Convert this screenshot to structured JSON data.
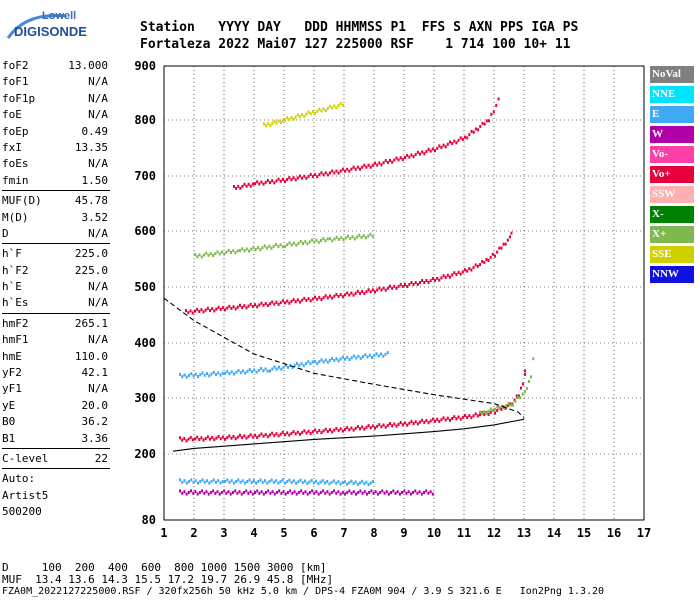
{
  "logo": {
    "line1": "Lowell",
    "line2": "DIGISONDE"
  },
  "header": {
    "line1": "Station   YYYY DAY   DDD HHMMSS P1  FFS S AXN PPS IGA PS",
    "line2": "Fortaleza 2022 Mai07 127 225000 RSF    1 714 100 10+ 11"
  },
  "params": {
    "group1": [
      {
        "k": "foF2",
        "v": "13.000"
      },
      {
        "k": "foF1",
        "v": "N/A"
      },
      {
        "k": "foF1p",
        "v": "N/A"
      },
      {
        "k": "foE",
        "v": "N/A"
      },
      {
        "k": "foEp",
        "v": "0.49"
      },
      {
        "k": "fxI",
        "v": "13.35"
      },
      {
        "k": "foEs",
        "v": "N/A"
      },
      {
        "k": "fmin",
        "v": "1.50"
      }
    ],
    "group2": [
      {
        "k": "MUF(D)",
        "v": "45.78"
      },
      {
        "k": "M(D)",
        "v": "3.52"
      },
      {
        "k": "D",
        "v": "N/A"
      }
    ],
    "group3": [
      {
        "k": "h`F",
        "v": "225.0"
      },
      {
        "k": "h`F2",
        "v": "225.0"
      },
      {
        "k": "h`E",
        "v": "N/A"
      },
      {
        "k": "h`Es",
        "v": "N/A"
      }
    ],
    "group4": [
      {
        "k": "hmF2",
        "v": "265.1"
      },
      {
        "k": "hmF1",
        "v": "N/A"
      },
      {
        "k": "hmE",
        "v": "110.0"
      },
      {
        "k": "yF2",
        "v": "42.1"
      },
      {
        "k": "yF1",
        "v": "N/A"
      },
      {
        "k": "yE",
        "v": "20.0"
      },
      {
        "k": "B0",
        "v": "36.2"
      },
      {
        "k": "B1",
        "v": "3.36"
      }
    ],
    "clevel": {
      "k": "C-level",
      "v": "22"
    },
    "auto": [
      "Auto:",
      "Artist5",
      "500200"
    ]
  },
  "legend": [
    {
      "label": "NoVal",
      "color": "#808080"
    },
    {
      "label": "NNE",
      "color": "#00e5ff"
    },
    {
      "label": "E",
      "color": "#3fa9f5"
    },
    {
      "label": "W",
      "color": "#b000a8"
    },
    {
      "label": "Vo-",
      "color": "#ff3fa8"
    },
    {
      "label": "Vo+",
      "color": "#e8003c"
    },
    {
      "label": "SSW",
      "color": "#ffb0b0"
    },
    {
      "label": "X-",
      "color": "#008000"
    },
    {
      "label": "X+",
      "color": "#80b850"
    },
    {
      "label": "SSE",
      "color": "#d0d000"
    },
    {
      "label": "NNW",
      "color": "#1010e0"
    }
  ],
  "footer": {
    "line1": "D     100  200  400  600  800 1000 1500 3000 [km]",
    "line2": "MUF  13.4 13.6 14.3 15.5 17.2 19.7 26.9 45.8 [MHz]",
    "line3": "FZA0M_2022127225000.RSF / 320fx256h 50 kHz 5.0 km / DPS-4 FZA0M 904 / 3.9 S 321.6 E   Ion2Png 1.3.20"
  },
  "chart_data": {
    "type": "scatter",
    "xlim": [
      1,
      17
    ],
    "ylim": [
      80,
      900
    ],
    "xticks": [
      "1",
      "2",
      "3",
      "4",
      "5",
      "6",
      "7",
      "8",
      "9",
      "10",
      "11",
      "12",
      "13",
      "14",
      "15",
      "16",
      "17"
    ],
    "yticks": [
      "80",
      "200",
      "300",
      "400",
      "500",
      "600",
      "700",
      "800",
      "900"
    ],
    "grid": true,
    "traces": [
      {
        "name": "F2 O-trace 1st hop",
        "color": "#e8003c",
        "points": [
          [
            1.5,
            226
          ],
          [
            2,
            227
          ],
          [
            3,
            229
          ],
          [
            4,
            232
          ],
          [
            5,
            236
          ],
          [
            6,
            240
          ],
          [
            7,
            244
          ],
          [
            8,
            249
          ],
          [
            9,
            254
          ],
          [
            10,
            260
          ],
          [
            11,
            266
          ],
          [
            11.5,
            270
          ],
          [
            12,
            276
          ],
          [
            12.5,
            288
          ],
          [
            12.8,
            305
          ],
          [
            13,
            340
          ],
          [
            13.0,
            362
          ]
        ]
      },
      {
        "name": "F2 O-trace 2nd hop",
        "color": "#e8003c",
        "points": [
          [
            1.7,
            455
          ],
          [
            2,
            457
          ],
          [
            3,
            462
          ],
          [
            4,
            467
          ],
          [
            5,
            473
          ],
          [
            6,
            479
          ],
          [
            7,
            486
          ],
          [
            8,
            494
          ],
          [
            9,
            503
          ],
          [
            10,
            513
          ],
          [
            11,
            528
          ],
          [
            11.5,
            540
          ],
          [
            12,
            558
          ],
          [
            12.5,
            588
          ],
          [
            12.6,
            610
          ]
        ]
      },
      {
        "name": "F2 O-trace 3rd hop",
        "color": "#e8003c",
        "points": [
          [
            3.3,
            678
          ],
          [
            4,
            686
          ],
          [
            5,
            693
          ],
          [
            6,
            701
          ],
          [
            7,
            710
          ],
          [
            8,
            720
          ],
          [
            9,
            733
          ],
          [
            10,
            748
          ],
          [
            11,
            768
          ],
          [
            11.8,
            800
          ],
          [
            12.2,
            845
          ]
        ]
      },
      {
        "name": "X trace",
        "color": "#80b850",
        "points": [
          [
            11.5,
            272
          ],
          [
            12,
            280
          ],
          [
            12.6,
            290
          ],
          [
            13.0,
            310
          ],
          [
            13.2,
            340
          ],
          [
            13.35,
            400
          ]
        ]
      },
      {
        "name": "Spread 340",
        "color": "#3fa9f5",
        "points": [
          [
            1.5,
            340
          ],
          [
            3,
            345
          ],
          [
            4.5,
            352
          ],
          [
            6,
            365
          ],
          [
            7,
            372
          ],
          [
            8.5,
            380
          ]
        ]
      },
      {
        "name": "Spread 560",
        "color": "#80b850",
        "points": [
          [
            2,
            555
          ],
          [
            3.5,
            565
          ],
          [
            5,
            575
          ],
          [
            6.5,
            585
          ],
          [
            8,
            592
          ]
        ]
      },
      {
        "name": "Spread 150",
        "color": "#3fa9f5",
        "points": [
          [
            1.5,
            150
          ],
          [
            3,
            150
          ],
          [
            5,
            150
          ],
          [
            7,
            148
          ],
          [
            8,
            147
          ]
        ]
      },
      {
        "name": "Spread 130",
        "color": "#b000a8",
        "points": [
          [
            1.5,
            130
          ],
          [
            4,
            130
          ],
          [
            7,
            130
          ],
          [
            10,
            130
          ]
        ]
      },
      {
        "name": "Es 790",
        "color": "#d0d000",
        "points": [
          [
            4.3,
            790
          ],
          [
            5,
            800
          ],
          [
            6,
            815
          ],
          [
            7,
            830
          ]
        ]
      }
    ],
    "profile_solid": [
      [
        1.3,
        205
      ],
      [
        2,
        210
      ],
      [
        4,
        218
      ],
      [
        6,
        226
      ],
      [
        8,
        232
      ],
      [
        10,
        240
      ],
      [
        11,
        245
      ],
      [
        12,
        252
      ],
      [
        12.6,
        258
      ],
      [
        13,
        262
      ]
    ],
    "profile_dashed": [
      [
        1,
        480
      ],
      [
        2,
        440
      ],
      [
        4,
        380
      ],
      [
        6,
        345
      ],
      [
        8,
        325
      ],
      [
        10,
        306
      ],
      [
        12,
        290
      ],
      [
        12.8,
        275
      ],
      [
        13,
        265
      ]
    ]
  }
}
